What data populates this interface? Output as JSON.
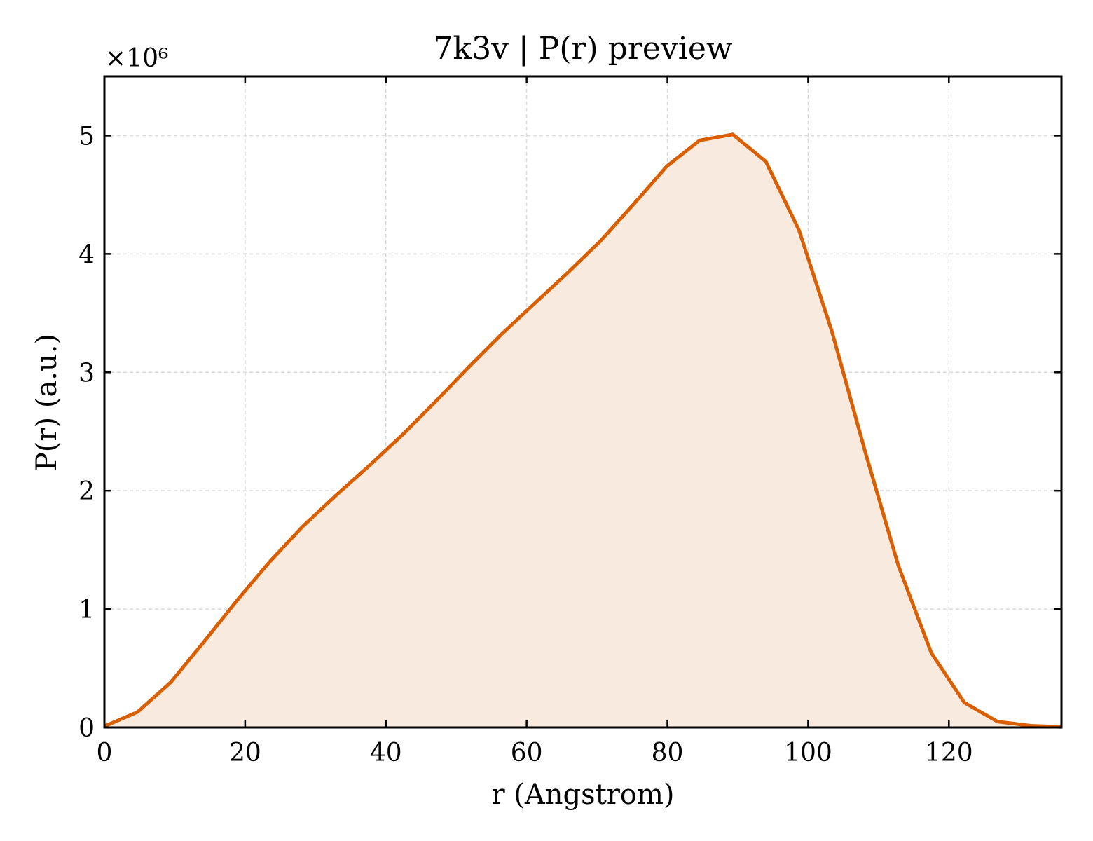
{
  "chart_data": {
    "type": "area",
    "title": "7k3v | P(r) preview",
    "xlabel": "r (Angstrom)",
    "ylabel": "P(r) (a.u.)",
    "y_multiplier_label": "×10⁶",
    "xlim": [
      0,
      136
    ],
    "ylim": [
      0,
      5.5
    ],
    "x_ticks": [
      0,
      20,
      40,
      60,
      80,
      100,
      120
    ],
    "y_ticks": [
      0,
      1,
      2,
      3,
      4,
      5
    ],
    "grid": true,
    "legend": "none",
    "colors": {
      "line": "#d95f02",
      "fill": "#f9eadf"
    },
    "series": [
      {
        "x": [
          0,
          4.7,
          9.4,
          14.1,
          18.8,
          23.5,
          28.2,
          32.9,
          37.6,
          42.3,
          47.0,
          51.7,
          56.4,
          61.1,
          65.8,
          70.5,
          75.2,
          79.9,
          84.6,
          89.3,
          94.0,
          98.7,
          103.4,
          108.1,
          112.8,
          117.5,
          122.2,
          126.9,
          131.6,
          136.0
        ],
        "y": [
          0.01,
          0.13,
          0.38,
          0.72,
          1.07,
          1.4,
          1.7,
          1.96,
          2.21,
          2.47,
          2.75,
          3.04,
          3.32,
          3.58,
          3.84,
          4.11,
          4.42,
          4.74,
          4.96,
          5.01,
          4.78,
          4.2,
          3.34,
          2.33,
          1.37,
          0.63,
          0.21,
          0.05,
          0.015,
          0.005
        ]
      }
    ]
  }
}
